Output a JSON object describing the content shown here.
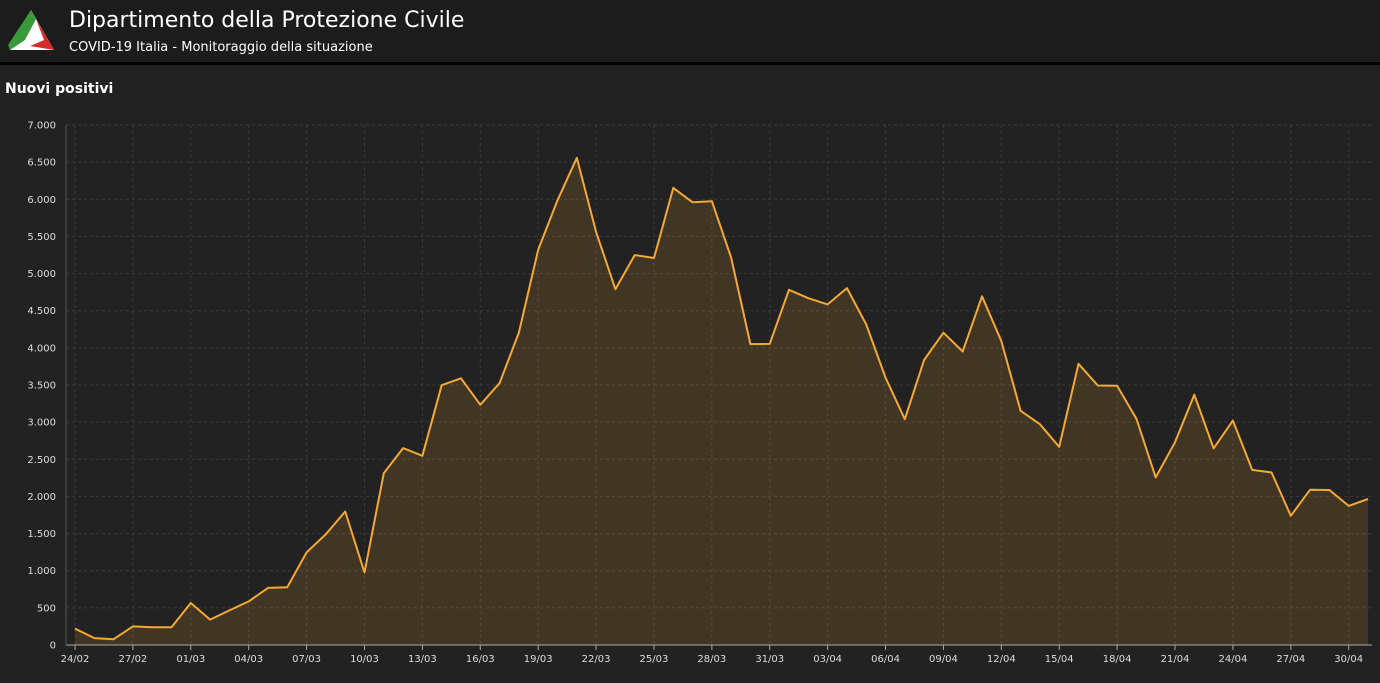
{
  "header": {
    "title": "Dipartimento della Protezione Civile",
    "subtitle": "COVID-19 Italia - Monitoraggio della situazione"
  },
  "chart_data": {
    "type": "line",
    "title": "Nuovi positivi",
    "categories": [
      "24/02",
      null,
      null,
      "27/02",
      null,
      null,
      "01/03",
      null,
      null,
      "04/03",
      null,
      null,
      "07/03",
      null,
      null,
      "10/03",
      null,
      null,
      "13/03",
      null,
      null,
      "16/03",
      null,
      null,
      "19/03",
      null,
      null,
      "22/03",
      null,
      null,
      "25/03",
      null,
      null,
      "28/03",
      null,
      null,
      "31/03",
      null,
      null,
      "03/04",
      null,
      null,
      "06/04",
      null,
      null,
      "09/04",
      null,
      null,
      "12/04",
      null,
      null,
      "15/04",
      null,
      null,
      "18/04",
      null,
      null,
      "21/04",
      null,
      null,
      "24/04",
      null,
      null,
      "27/04",
      null,
      null,
      "30/04",
      null
    ],
    "series": [
      {
        "name": "Nuovi positivi",
        "color": "#f5a935",
        "values": [
          221,
          93,
          78,
          250,
          238,
          240,
          566,
          342,
          466,
          587,
          769,
          778,
          1247,
          1492,
          1797,
          977,
          2313,
          2651,
          2547,
          3497,
          3590,
          3233,
          3526,
          4207,
          5322,
          5986,
          6557,
          5560,
          4789,
          5249,
          5210,
          6153,
          5959,
          5974,
          5217,
          4050,
          4053,
          4782,
          4668,
          4585,
          4805,
          4316,
          3599,
          3039,
          3836,
          4204,
          3951,
          4694,
          4092,
          3153,
          2972,
          2667,
          3786,
          3493,
          3491,
          3047,
          2256,
          2729,
          3370,
          2646,
          3021,
          2357,
          2324,
          1739,
          2091,
          2086,
          1872,
          1965
        ]
      }
    ],
    "ylim": [
      0,
      7000
    ],
    "yticks": [
      0,
      500,
      {
        "value": 1000,
        "label": "1.000"
      },
      {
        "value": 1500,
        "label": "1.500"
      },
      {
        "value": 2000,
        "label": "2.000"
      },
      {
        "value": 2500,
        "label": "2.500"
      },
      {
        "value": 3000,
        "label": "3.000"
      },
      {
        "value": 3500,
        "label": "3.500"
      },
      {
        "value": 4000,
        "label": "4.000"
      },
      {
        "value": 4500,
        "label": "4.500"
      },
      {
        "value": 5000,
        "label": "5.000"
      },
      {
        "value": 5500,
        "label": "5.500"
      },
      {
        "value": 6000,
        "label": "6.000"
      },
      {
        "value": 6500,
        "label": "6.500"
      },
      {
        "value": 7000,
        "label": "7.000"
      }
    ],
    "grid": true
  }
}
